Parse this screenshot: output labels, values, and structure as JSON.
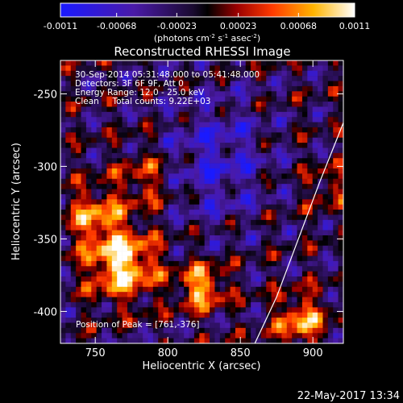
{
  "chart_data": {
    "type": "heatmap",
    "title": "Reconstructed RHESSI Image",
    "colorbar": {
      "ticks": [
        "-0.0011",
        "-0.00068",
        "-0.00023",
        "0.00023",
        "0.00068",
        "0.0011"
      ],
      "tick_values": [
        -0.0011,
        -0.00068,
        -0.00023,
        0.00023,
        0.00068,
        0.0011
      ],
      "range": [
        -0.0011,
        0.0011
      ],
      "label_main": "(photons cm",
      "label_sup1": "-2",
      "label_mid1": " s",
      "label_sup2": "-1",
      "label_mid2": " asec",
      "label_sup3": "-2",
      "label_end": ")"
    },
    "xlabel": "Heliocentric X (arcsec)",
    "ylabel": "Heliocentric Y (arcsec)",
    "xlim": [
      726,
      921
    ],
    "ylim": [
      -422,
      -227
    ],
    "x_ticks": [
      750,
      800,
      850,
      900
    ],
    "y_ticks": [
      -250,
      -300,
      -350,
      -400
    ],
    "annotations": [
      "30-Sep-2014 05:31:48.000 to 05:41:48.000",
      "Detectors: 3F 6F 9F, Att 0",
      "Energy Range: 12.0 - 25.0 keV",
      "Clean     Total counts: 9.22E+03"
    ],
    "peak_label": "Position of Peak = [761,-376]",
    "peak": [
      761,
      -376
    ],
    "limb_curve": [
      [
        860,
        -422
      ],
      [
        875,
        -390
      ],
      [
        890,
        -350
      ],
      [
        905,
        -310
      ],
      [
        921,
        -270
      ]
    ],
    "colormap": "blue-purple-black-red-orange-yellow-white"
  },
  "timestamp": "22-May-2017 13:34"
}
